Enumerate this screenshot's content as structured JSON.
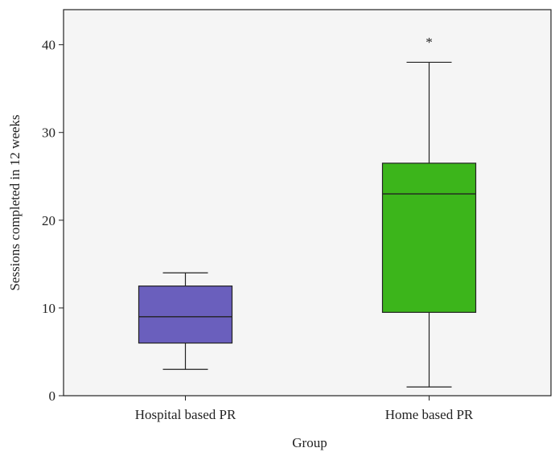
{
  "chart_data": {
    "type": "boxplot",
    "title": "",
    "xlabel": "Group",
    "ylabel": "Sessions completed in 12 weeks",
    "ylim": [
      0,
      44
    ],
    "yticks": [
      0,
      10,
      20,
      30,
      40
    ],
    "grid": false,
    "background": "#f5f5f5",
    "categories": [
      "Hospital based PR",
      "Home based PR"
    ],
    "boxes": [
      {
        "category": "Hospital based PR",
        "whisker_low": 3,
        "q1": 6,
        "median": 9,
        "q3": 12.5,
        "whisker_high": 14,
        "outliers": [],
        "color": "#6a5fbd"
      },
      {
        "category": "Home based PR",
        "whisker_low": 1,
        "q1": 9.5,
        "median": 23,
        "q3": 26.5,
        "whisker_high": 38,
        "outliers": [
          40.5
        ],
        "color": "#3cb51b"
      }
    ],
    "outlier_marker": "*"
  }
}
